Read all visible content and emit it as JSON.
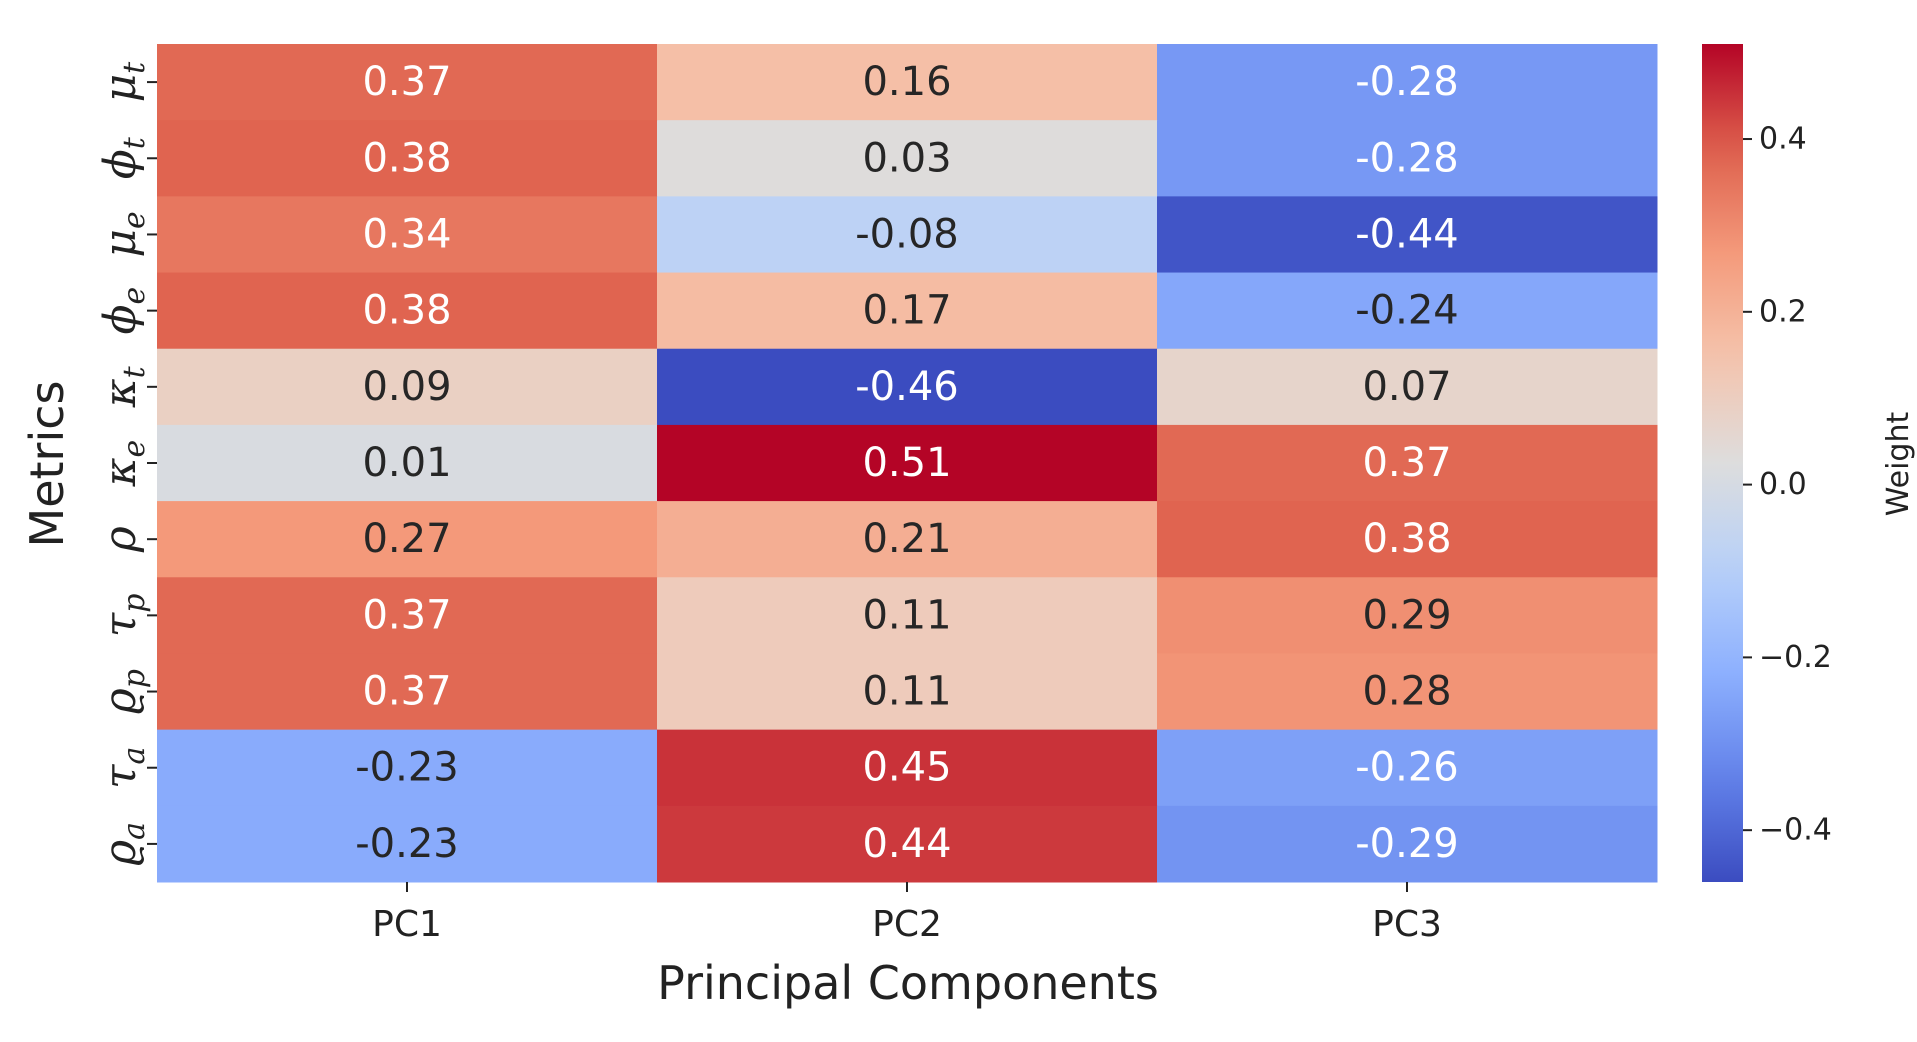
{
  "chart_data": {
    "type": "heatmap",
    "title": "",
    "xlabel": "Principal Components",
    "ylabel": "Metrics",
    "columns": [
      "PC1",
      "PC2",
      "PC3"
    ],
    "rows": [
      {
        "symbol": "μ",
        "sub": "t"
      },
      {
        "symbol": "ϕ",
        "sub": "t"
      },
      {
        "symbol": "μ",
        "sub": "e"
      },
      {
        "symbol": "ϕ",
        "sub": "e"
      },
      {
        "symbol": "κ",
        "sub": "t"
      },
      {
        "symbol": "κ",
        "sub": "e"
      },
      {
        "symbol": "ρ",
        "sub": ""
      },
      {
        "symbol": "τ",
        "sub": "p"
      },
      {
        "symbol": "ϱ",
        "sub": "p"
      },
      {
        "symbol": "τ",
        "sub": "a"
      },
      {
        "symbol": "ϱ",
        "sub": "a"
      }
    ],
    "values": [
      [
        0.37,
        0.16,
        -0.28
      ],
      [
        0.38,
        0.03,
        -0.28
      ],
      [
        0.34,
        -0.08,
        -0.44
      ],
      [
        0.38,
        0.17,
        -0.24
      ],
      [
        0.09,
        -0.46,
        0.07
      ],
      [
        0.01,
        0.51,
        0.37
      ],
      [
        0.27,
        0.21,
        0.38
      ],
      [
        0.37,
        0.11,
        0.29
      ],
      [
        0.37,
        0.11,
        0.28
      ],
      [
        -0.23,
        0.45,
        -0.26
      ],
      [
        -0.23,
        0.44,
        -0.29
      ]
    ],
    "cell_labels": [
      [
        "0.37",
        "0.16",
        "-0.28"
      ],
      [
        "0.38",
        "0.03",
        "-0.28"
      ],
      [
        "0.34",
        "-0.08",
        "-0.44"
      ],
      [
        "0.38",
        "0.17",
        "-0.24"
      ],
      [
        "0.09",
        "-0.46",
        "0.07"
      ],
      [
        "0.01",
        "0.51",
        "0.37"
      ],
      [
        "0.27",
        "0.21",
        "0.38"
      ],
      [
        "0.37",
        "0.11",
        "0.29"
      ],
      [
        "0.37",
        "0.11",
        "0.28"
      ],
      [
        "-0.23",
        "0.45",
        "-0.26"
      ],
      [
        "-0.23",
        "0.44",
        "-0.29"
      ]
    ],
    "colormap": "coolwarm",
    "vmin": -0.46,
    "vmax": 0.51,
    "colorbar": {
      "title": "Weight",
      "ticks": [
        0.4,
        0.2,
        0.0,
        -0.2,
        -0.4
      ],
      "tick_labels": [
        "0.4",
        "0.2",
        "0.0",
        "−0.2",
        "−0.4"
      ]
    },
    "colors": {
      "text_dark": "#262626",
      "text_light": "#ffffff"
    }
  }
}
